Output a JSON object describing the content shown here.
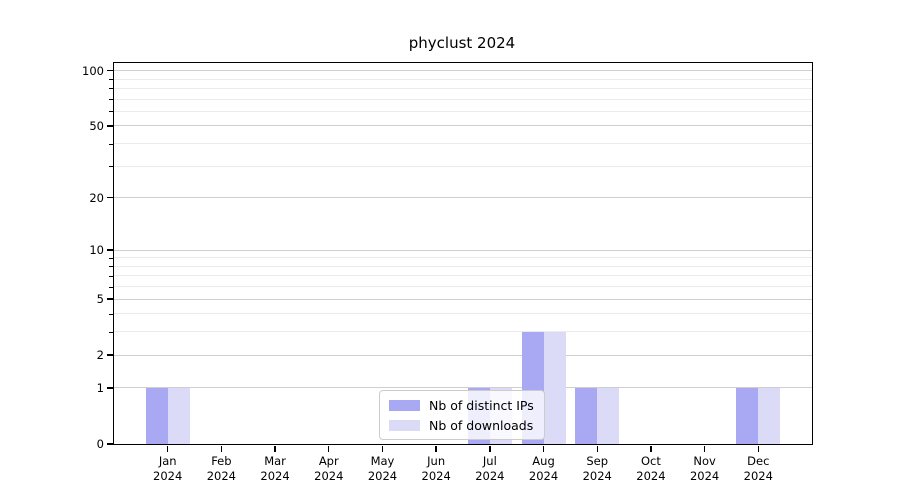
{
  "chart_data": {
    "type": "bar",
    "title": "phyclust 2024",
    "categories": [
      "Jan 2024",
      "Feb 2024",
      "Mar 2024",
      "Apr 2024",
      "May 2024",
      "Jun 2024",
      "Jul 2024",
      "Aug 2024",
      "Sep 2024",
      "Oct 2024",
      "Nov 2024",
      "Dec 2024"
    ],
    "series": [
      {
        "name": "Nb of distinct IPs",
        "color": "#a8a8f3",
        "values": [
          1,
          0,
          0,
          0,
          0,
          0,
          1,
          3,
          1,
          0,
          0,
          1
        ]
      },
      {
        "name": "Nb of downloads",
        "color": "#dbdbf8",
        "values": [
          1,
          0,
          0,
          0,
          0,
          0,
          1,
          3,
          1,
          0,
          0,
          1
        ]
      }
    ],
    "yscale": "log1p",
    "ylim": [
      0,
      110
    ],
    "yticks": [
      0,
      1,
      2,
      5,
      10,
      20,
      50,
      100
    ],
    "yticks_minor": [
      3,
      4,
      6,
      7,
      8,
      9,
      30,
      40,
      60,
      70,
      80,
      90
    ],
    "grid": true,
    "legend_position": "lower center"
  },
  "colors": {
    "grid_major": "#cfcfcf",
    "grid_minor": "#ebebeb",
    "axis": "#000000",
    "legend_border": "#cccccc"
  }
}
